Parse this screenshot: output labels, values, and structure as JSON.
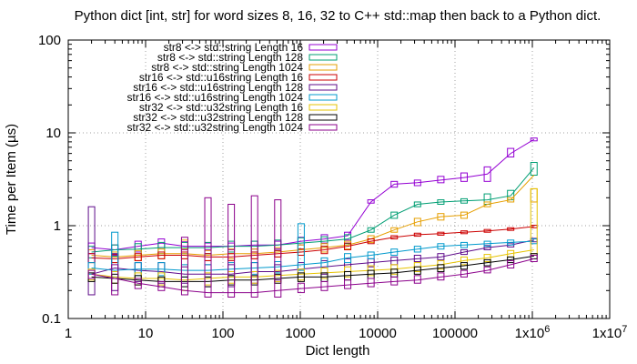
{
  "chart_data": {
    "type": "line",
    "title": "Python dict [int, str] for word sizes 8, 16, 32 to C++ std::map then back to a Python dict.",
    "xlabel": "Dict length",
    "ylabel": "Time per Item (µs)",
    "x_scale": "log",
    "y_scale": "log",
    "xlim": [
      1,
      10000000
    ],
    "ylim": [
      0.1,
      100
    ],
    "grid": true,
    "legend_position": "top-left",
    "x_ticks": [
      {
        "value": 1,
        "label": "1"
      },
      {
        "value": 10,
        "label": "10"
      },
      {
        "value": 100,
        "label": "100"
      },
      {
        "value": 1000,
        "label": "1000"
      },
      {
        "value": 10000,
        "label": "10000"
      },
      {
        "value": 100000,
        "label": "100000"
      },
      {
        "value": 1000000,
        "label": "1x10^6"
      },
      {
        "value": 10000000,
        "label": "1x10^7"
      }
    ],
    "y_ticks": [
      {
        "value": 0.1,
        "label": "0.1"
      },
      {
        "value": 1,
        "label": "1"
      },
      {
        "value": 10,
        "label": "10"
      },
      {
        "value": 100,
        "label": "100"
      }
    ],
    "x": [
      2,
      4,
      8,
      16,
      32,
      64,
      128,
      256,
      512,
      1024,
      2048,
      4096,
      8192,
      16384,
      32768,
      65536,
      131072,
      262144,
      524288,
      1048576
    ],
    "series": [
      {
        "name": "str8 <-> std::string Length 16",
        "color": "#9400d3",
        "values": [
          0.58,
          0.55,
          0.6,
          0.65,
          0.6,
          0.6,
          0.6,
          0.62,
          0.62,
          0.68,
          0.72,
          0.78,
          1.8,
          2.8,
          2.9,
          3.1,
          3.3,
          3.6,
          6.0,
          8.5
        ],
        "err": [
          [
            0.5,
            0.65
          ],
          [
            0.48,
            0.62
          ],
          [
            0.52,
            0.68
          ],
          [
            0.58,
            0.72
          ],
          [
            0.55,
            0.67
          ],
          [
            0.55,
            0.65
          ],
          [
            0.55,
            0.65
          ],
          [
            0.56,
            0.68
          ],
          [
            0.56,
            0.68
          ],
          [
            0.62,
            0.75
          ],
          [
            0.65,
            0.8
          ],
          [
            0.7,
            0.85
          ],
          [
            1.75,
            1.9
          ],
          [
            2.6,
            3.0
          ],
          [
            2.7,
            3.1
          ],
          [
            2.9,
            3.4
          ],
          [
            3.0,
            3.7
          ],
          [
            3.0,
            4.3
          ],
          [
            5.5,
            6.8
          ],
          [
            8.2,
            8.8
          ]
        ]
      },
      {
        "name": "str8 <-> std::string Length 128",
        "color": "#009e73",
        "values": [
          0.52,
          0.55,
          0.56,
          0.58,
          0.58,
          0.58,
          0.6,
          0.6,
          0.62,
          0.65,
          0.68,
          0.72,
          0.9,
          1.3,
          1.7,
          1.8,
          1.85,
          1.9,
          2.1,
          4.2
        ],
        "err": [
          [
            0.45,
            0.6
          ],
          [
            0.47,
            0.62
          ],
          [
            0.48,
            0.64
          ],
          [
            0.5,
            0.66
          ],
          [
            0.5,
            0.66
          ],
          [
            0.5,
            0.66
          ],
          [
            0.52,
            0.68
          ],
          [
            0.52,
            0.68
          ],
          [
            0.54,
            0.7
          ],
          [
            0.56,
            0.74
          ],
          [
            0.6,
            0.76
          ],
          [
            0.64,
            0.8
          ],
          [
            0.85,
            0.95
          ],
          [
            1.2,
            1.4
          ],
          [
            1.6,
            1.8
          ],
          [
            1.7,
            1.9
          ],
          [
            1.75,
            1.95
          ],
          [
            1.7,
            2.2
          ],
          [
            1.9,
            2.4
          ],
          [
            3.5,
            4.8
          ]
        ]
      },
      {
        "name": "str8 <-> std::string Length 1024",
        "color": "#e69f00",
        "values": [
          0.48,
          0.46,
          0.48,
          0.5,
          0.5,
          0.48,
          0.5,
          0.5,
          0.52,
          0.55,
          0.58,
          0.62,
          0.72,
          0.9,
          1.1,
          1.25,
          1.3,
          1.7,
          1.9,
          3.5
        ],
        "err": [
          [
            0.4,
            0.55
          ],
          [
            0.4,
            0.52
          ],
          [
            0.42,
            0.54
          ],
          [
            0.44,
            0.56
          ],
          [
            0.44,
            0.56
          ],
          [
            0.42,
            0.54
          ],
          [
            0.44,
            0.56
          ],
          [
            0.44,
            0.56
          ],
          [
            0.46,
            0.58
          ],
          [
            0.48,
            0.62
          ],
          [
            0.52,
            0.64
          ],
          [
            0.56,
            0.68
          ],
          [
            0.66,
            0.78
          ],
          [
            0.85,
            0.95
          ],
          [
            1.0,
            1.2
          ],
          [
            1.15,
            1.35
          ],
          [
            1.2,
            1.4
          ],
          [
            1.6,
            1.8
          ],
          [
            1.8,
            2.0
          ],
          [
            1.8,
            2.5
          ]
        ]
      },
      {
        "name": "str16 <-> std::u16string Length 16",
        "color": "#cc0000",
        "values": [
          0.45,
          0.44,
          0.46,
          0.48,
          0.48,
          0.46,
          0.46,
          0.48,
          0.5,
          0.52,
          0.55,
          0.6,
          0.68,
          0.75,
          0.8,
          0.82,
          0.85,
          0.88,
          0.92,
          0.98
        ],
        "err": [
          [
            0.4,
            0.5
          ],
          [
            0.4,
            0.49
          ],
          [
            0.42,
            0.5
          ],
          [
            0.44,
            0.52
          ],
          [
            0.44,
            0.52
          ],
          [
            0.42,
            0.5
          ],
          [
            0.42,
            0.5
          ],
          [
            0.44,
            0.52
          ],
          [
            0.46,
            0.54
          ],
          [
            0.48,
            0.56
          ],
          [
            0.5,
            0.6
          ],
          [
            0.55,
            0.65
          ],
          [
            0.64,
            0.72
          ],
          [
            0.72,
            0.78
          ],
          [
            0.77,
            0.83
          ],
          [
            0.79,
            0.85
          ],
          [
            0.82,
            0.88
          ],
          [
            0.85,
            0.91
          ],
          [
            0.89,
            0.95
          ],
          [
            0.95,
            1.01
          ]
        ]
      },
      {
        "name": "str16 <-> std::u16string Length 128",
        "color": "#5e0b8a",
        "values": [
          0.3,
          0.35,
          0.33,
          0.32,
          0.3,
          0.3,
          0.3,
          0.32,
          0.32,
          0.34,
          0.36,
          0.38,
          0.4,
          0.42,
          0.44,
          0.46,
          0.52,
          0.58,
          0.62,
          0.7
        ],
        "err": [
          [
            0.18,
            1.6
          ],
          [
            0.2,
            0.5
          ],
          [
            0.25,
            0.4
          ],
          [
            0.24,
            0.4
          ],
          [
            0.24,
            0.36
          ],
          [
            0.22,
            0.38
          ],
          [
            0.22,
            0.38
          ],
          [
            0.24,
            0.4
          ],
          [
            0.26,
            0.38
          ],
          [
            0.28,
            0.4
          ],
          [
            0.3,
            0.42
          ],
          [
            0.32,
            0.44
          ],
          [
            0.36,
            0.44
          ],
          [
            0.38,
            0.46
          ],
          [
            0.41,
            0.48
          ],
          [
            0.43,
            0.5
          ],
          [
            0.49,
            0.55
          ],
          [
            0.55,
            0.61
          ],
          [
            0.59,
            0.65
          ],
          [
            0.67,
            0.73
          ]
        ]
      },
      {
        "name": "str16 <-> std::u16string Length 1024",
        "color": "#0099cc",
        "values": [
          0.35,
          0.33,
          0.34,
          0.34,
          0.33,
          0.33,
          0.34,
          0.35,
          0.36,
          0.38,
          0.4,
          0.45,
          0.48,
          0.52,
          0.56,
          0.6,
          0.62,
          0.64,
          0.66,
          0.68
        ],
        "err": [
          [
            0.3,
            0.4
          ],
          [
            0.28,
            0.85
          ],
          [
            0.29,
            0.4
          ],
          [
            0.29,
            0.4
          ],
          [
            0.28,
            0.38
          ],
          [
            0.28,
            0.38
          ],
          [
            0.29,
            0.4
          ],
          [
            0.3,
            0.4
          ],
          [
            0.31,
            0.41
          ],
          [
            0.33,
            1.05
          ],
          [
            0.35,
            0.45
          ],
          [
            0.4,
            0.5
          ],
          [
            0.44,
            0.52
          ],
          [
            0.48,
            0.56
          ],
          [
            0.52,
            0.6
          ],
          [
            0.56,
            0.64
          ],
          [
            0.58,
            0.66
          ],
          [
            0.6,
            0.68
          ],
          [
            0.62,
            0.7
          ],
          [
            0.64,
            0.72
          ]
        ]
      },
      {
        "name": "str32 <-> std::u32string Length 16",
        "color": "#e6c300",
        "values": [
          0.3,
          0.28,
          0.27,
          0.27,
          0.26,
          0.27,
          0.28,
          0.28,
          0.29,
          0.3,
          0.31,
          0.32,
          0.33,
          0.34,
          0.36,
          0.38,
          0.42,
          0.45,
          0.5,
          0.55
        ],
        "err": [
          [
            0.26,
            0.34
          ],
          [
            0.24,
            0.32
          ],
          [
            0.23,
            0.31
          ],
          [
            0.23,
            0.31
          ],
          [
            0.2,
            0.7
          ],
          [
            0.23,
            0.31
          ],
          [
            0.24,
            0.32
          ],
          [
            0.24,
            0.32
          ],
          [
            0.25,
            0.33
          ],
          [
            0.26,
            0.34
          ],
          [
            0.27,
            0.35
          ],
          [
            0.28,
            0.36
          ],
          [
            0.29,
            0.37
          ],
          [
            0.3,
            0.38
          ],
          [
            0.32,
            0.4
          ],
          [
            0.34,
            0.42
          ],
          [
            0.38,
            0.46
          ],
          [
            0.41,
            0.49
          ],
          [
            0.46,
            0.54
          ],
          [
            0.5,
            2.5
          ]
        ]
      },
      {
        "name": "str32 <-> std::u32string Length 128",
        "color": "#000000",
        "values": [
          0.28,
          0.27,
          0.26,
          0.25,
          0.25,
          0.25,
          0.26,
          0.26,
          0.27,
          0.28,
          0.28,
          0.29,
          0.3,
          0.31,
          0.33,
          0.35,
          0.37,
          0.4,
          0.43,
          0.47
        ],
        "err": [
          [
            0.25,
            0.31
          ],
          [
            0.24,
            0.3
          ],
          [
            0.23,
            0.29
          ],
          [
            0.22,
            0.28
          ],
          [
            0.22,
            0.28
          ],
          [
            0.22,
            0.28
          ],
          [
            0.23,
            0.29
          ],
          [
            0.23,
            0.29
          ],
          [
            0.24,
            0.3
          ],
          [
            0.25,
            0.31
          ],
          [
            0.25,
            0.31
          ],
          [
            0.26,
            0.32
          ],
          [
            0.27,
            0.33
          ],
          [
            0.28,
            0.34
          ],
          [
            0.3,
            0.36
          ],
          [
            0.32,
            0.38
          ],
          [
            0.34,
            0.4
          ],
          [
            0.37,
            0.43
          ],
          [
            0.4,
            0.46
          ],
          [
            0.44,
            0.5
          ]
        ]
      },
      {
        "name": "str32 <-> std::u32string Length 1024",
        "color": "#8b008b",
        "values": [
          0.3,
          0.27,
          0.24,
          0.22,
          0.2,
          0.19,
          0.19,
          0.19,
          0.2,
          0.21,
          0.22,
          0.23,
          0.24,
          0.25,
          0.26,
          0.28,
          0.3,
          0.33,
          0.38,
          0.44
        ],
        "err": [
          [
            0.27,
            0.33
          ],
          [
            0.18,
            0.38
          ],
          [
            0.21,
            0.27
          ],
          [
            0.2,
            0.25
          ],
          [
            0.18,
            0.75
          ],
          [
            0.17,
            2.0
          ],
          [
            0.17,
            1.7
          ],
          [
            0.17,
            2.1
          ],
          [
            0.17,
            1.9
          ],
          [
            0.19,
            0.24
          ],
          [
            0.2,
            0.25
          ],
          [
            0.21,
            0.26
          ],
          [
            0.22,
            0.27
          ],
          [
            0.23,
            0.28
          ],
          [
            0.24,
            0.29
          ],
          [
            0.26,
            0.31
          ],
          [
            0.28,
            0.33
          ],
          [
            0.31,
            0.36
          ],
          [
            0.35,
            0.42
          ],
          [
            0.41,
            0.48
          ]
        ]
      }
    ]
  }
}
